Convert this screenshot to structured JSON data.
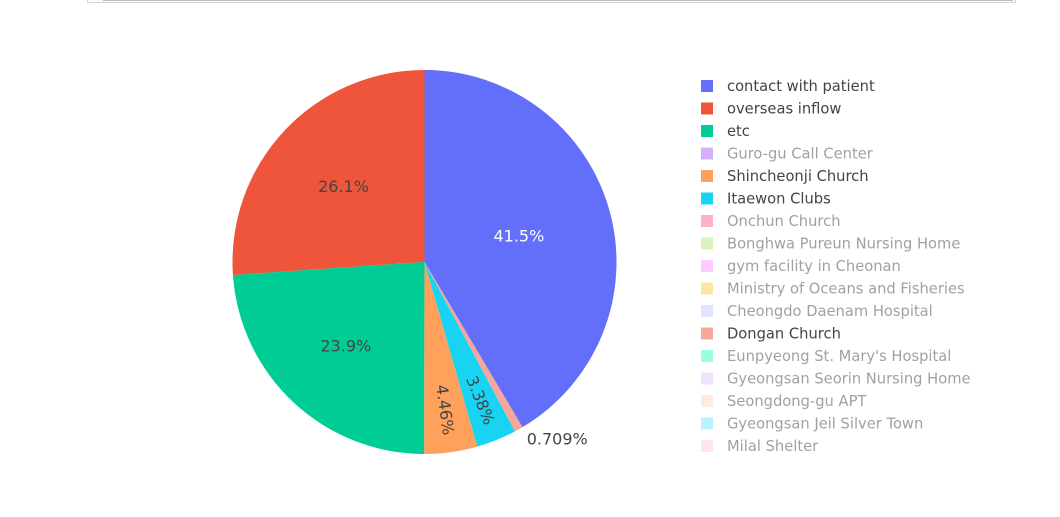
{
  "chart_data": {
    "type": "pie",
    "legend": "right",
    "slices": [
      {
        "label": "contact with patient",
        "value": 41.5,
        "text": "41.5%",
        "color": "#636efa",
        "text_color": "#ffffff",
        "visible": true
      },
      {
        "label": "overseas inflow",
        "value": 26.1,
        "text": "26.1%",
        "color": "#ef553b",
        "text_color": "#444444",
        "visible": true
      },
      {
        "label": "etc",
        "value": 23.9,
        "text": "23.9%",
        "color": "#00cc96",
        "text_color": "#444444",
        "visible": true
      },
      {
        "label": "Guro-gu Call Center",
        "color": "#ab63fa",
        "visible": false
      },
      {
        "label": "Shincheonji Church",
        "value": 4.46,
        "text": "4.46%",
        "color": "#ffa15a",
        "text_color": "#444444",
        "visible": true
      },
      {
        "label": "Itaewon Clubs",
        "value": 3.38,
        "text": "3.38%",
        "color": "#19d3f3",
        "text_color": "#444444",
        "visible": true
      },
      {
        "label": "Onchun Church",
        "color": "#ff6692",
        "visible": false
      },
      {
        "label": "Bonghwa Pureun Nursing Home",
        "color": "#b6e880",
        "visible": false
      },
      {
        "label": "gym facility in Cheonan",
        "color": "#ff97ff",
        "visible": false
      },
      {
        "label": "Ministry of Oceans and Fisheries",
        "color": "#fecb52",
        "visible": false
      },
      {
        "label": "Cheongdo Daenam Hospital",
        "color": "#c6cafd",
        "visible": false
      },
      {
        "label": "Dongan Church",
        "value": 0.709,
        "text": "0.709%",
        "color": "#f7a799",
        "text_color": "#444444",
        "visible": true
      },
      {
        "label": "Eunpyeong St. Mary's Hospital",
        "color": "#33ffc9",
        "visible": false
      },
      {
        "label": "Gyeongsan Seorin Nursing Home",
        "color": "#e0c6fd",
        "visible": false
      },
      {
        "label": "Seongdong-gu APT",
        "color": "#ffdbc0",
        "visible": false
      },
      {
        "label": "Gyeongsan Jeil Silver Town",
        "color": "#7ae6f8",
        "visible": false
      },
      {
        "label": "Milal Shelter",
        "color": "#ffccdb",
        "visible": false
      }
    ]
  }
}
